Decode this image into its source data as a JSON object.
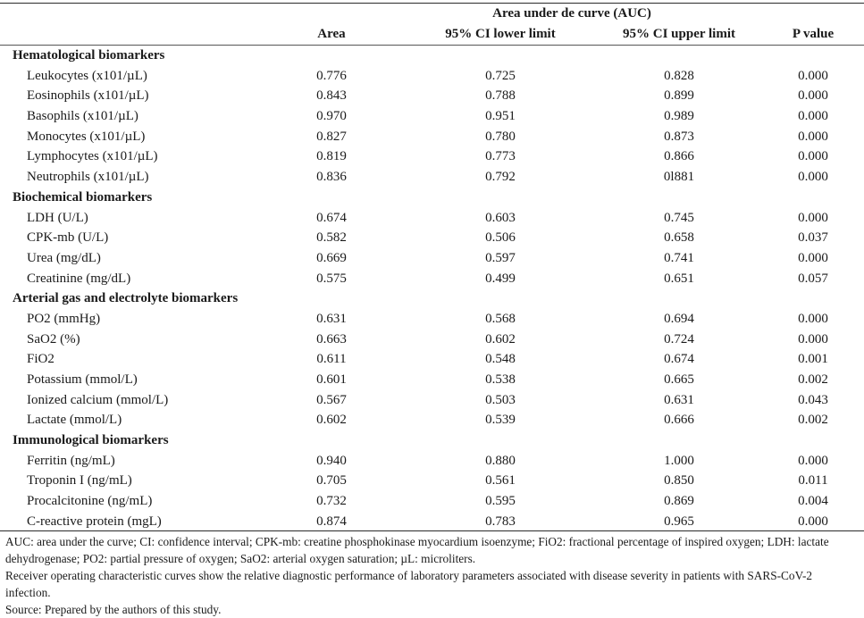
{
  "table": {
    "super_header": "Area under de curve (AUC)",
    "columns": [
      "Area",
      "95% CI lower limit",
      "95% CI upper limit",
      "P value"
    ],
    "groups": [
      {
        "title": "Hematological biomarkers",
        "rows": [
          {
            "label": "Leukocytes (x101/µL)",
            "area": "0.776",
            "lower": "0.725",
            "upper": "0.828",
            "p": "0.000"
          },
          {
            "label": "Eosinophils (x101/µL)",
            "area": "0.843",
            "lower": "0.788",
            "upper": "0.899",
            "p": "0.000"
          },
          {
            "label": "Basophils (x101/µL)",
            "area": "0.970",
            "lower": "0.951",
            "upper": "0.989",
            "p": "0.000"
          },
          {
            "label": "Monocytes (x101/µL)",
            "area": "0.827",
            "lower": "0.780",
            "upper": "0.873",
            "p": "0.000"
          },
          {
            "label": "Lymphocytes (x101/µL)",
            "area": "0.819",
            "lower": "0.773",
            "upper": "0.866",
            "p": "0.000"
          },
          {
            "label": "Neutrophils (x101/µL)",
            "area": "0.836",
            "lower": "0.792",
            "upper": "0l881",
            "p": "0.000"
          }
        ]
      },
      {
        "title": "Biochemical biomarkers",
        "rows": [
          {
            "label": "LDH (U/L)",
            "area": "0.674",
            "lower": "0.603",
            "upper": "0.745",
            "p": "0.000"
          },
          {
            "label": "CPK-mb (U/L)",
            "area": "0.582",
            "lower": "0.506",
            "upper": "0.658",
            "p": "0.037"
          },
          {
            "label": "Urea (mg/dL)",
            "area": "0.669",
            "lower": "0.597",
            "upper": "0.741",
            "p": "0.000"
          },
          {
            "label": "Creatinine (mg/dL)",
            "area": "0.575",
            "lower": "0.499",
            "upper": "0.651",
            "p": "0.057"
          }
        ]
      },
      {
        "title": "Arterial gas and electrolyte biomarkers",
        "rows": [
          {
            "label": "PO2 (mmHg)",
            "area": "0.631",
            "lower": "0.568",
            "upper": "0.694",
            "p": "0.000"
          },
          {
            "label": "SaO2 (%)",
            "area": "0.663",
            "lower": "0.602",
            "upper": "0.724",
            "p": "0.000"
          },
          {
            "label": "FiO2",
            "area": "0.611",
            "lower": "0.548",
            "upper": "0.674",
            "p": "0.001"
          },
          {
            "label": "Potassium (mmol/L)",
            "area": "0.601",
            "lower": "0.538",
            "upper": "0.665",
            "p": "0.002"
          },
          {
            "label": "Ionized calcium (mmol/L)",
            "area": "0.567",
            "lower": "0.503",
            "upper": "0.631",
            "p": "0.043"
          },
          {
            "label": "Lactate (mmol/L)",
            "area": "0.602",
            "lower": "0.539",
            "upper": "0.666",
            "p": "0.002"
          }
        ]
      },
      {
        "title": "Immunological biomarkers",
        "rows": [
          {
            "label": "Ferritin (ng/mL)",
            "area": "0.940",
            "lower": "0.880",
            "upper": "1.000",
            "p": "0.000"
          },
          {
            "label": "Troponin I (ng/mL)",
            "area": "0.705",
            "lower": "0.561",
            "upper": "0.850",
            "p": "0.011"
          },
          {
            "label": "Procalcitonine (ng/mL)",
            "area": "0.732",
            "lower": "0.595",
            "upper": "0.869",
            "p": "0.004"
          },
          {
            "label": "C-reactive protein (mgL)",
            "area": "0.874",
            "lower": "0.783",
            "upper": "0.965",
            "p": "0.000"
          }
        ]
      }
    ]
  },
  "footnotes": [
    "AUC: area under the curve; CI: confidence interval; CPK-mb: creatine phosphokinase myocardium isoenzyme; FiO2: fractional percentage of inspired oxygen; LDH: lactate dehydrogenase; PO2: partial pressure of oxygen; SaO2: arterial oxygen saturation; µL: microliters.",
    "Receiver operating characteristic curves show the relative diagnostic performance of laboratory parameters associated with disease severity in patients with SARS-CoV-2 infection.",
    "Source: Prepared by the authors of this study."
  ]
}
